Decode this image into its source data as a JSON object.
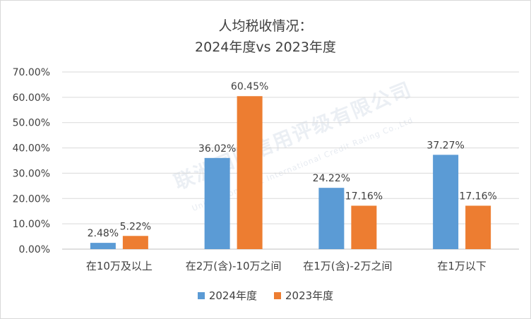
{
  "chart_data": {
    "type": "bar",
    "title_line1": "人均税收情况：",
    "title_line2": "2024年度vs 2023年度",
    "categories": [
      "在10万及以上",
      "在2万(含)-10万之间",
      "在1万(含)-2万之间",
      "在1万以下"
    ],
    "series": [
      {
        "name": "2024年度",
        "color": "#5b9bd5",
        "values": [
          2.48,
          36.02,
          24.22,
          37.27
        ],
        "labels": [
          "2.48%",
          "36.02%",
          "24.22%",
          "37.27%"
        ]
      },
      {
        "name": "2023年度",
        "color": "#ed7d31",
        "values": [
          5.22,
          60.45,
          17.16,
          17.16
        ],
        "labels": [
          "5.22%",
          "60.45%",
          "17.16%",
          "17.16%"
        ]
      }
    ],
    "ylim": [
      0,
      70
    ],
    "yticks": [
      "0.00%",
      "10.00%",
      "20.00%",
      "30.00%",
      "40.00%",
      "50.00%",
      "60.00%",
      "70.00%"
    ],
    "grid": true,
    "legend_position": "bottom"
  },
  "watermark": {
    "text": "联洲国际信用评级有限公司",
    "subtext": "United Continent International Credit Rating Co.,Ltd"
  }
}
